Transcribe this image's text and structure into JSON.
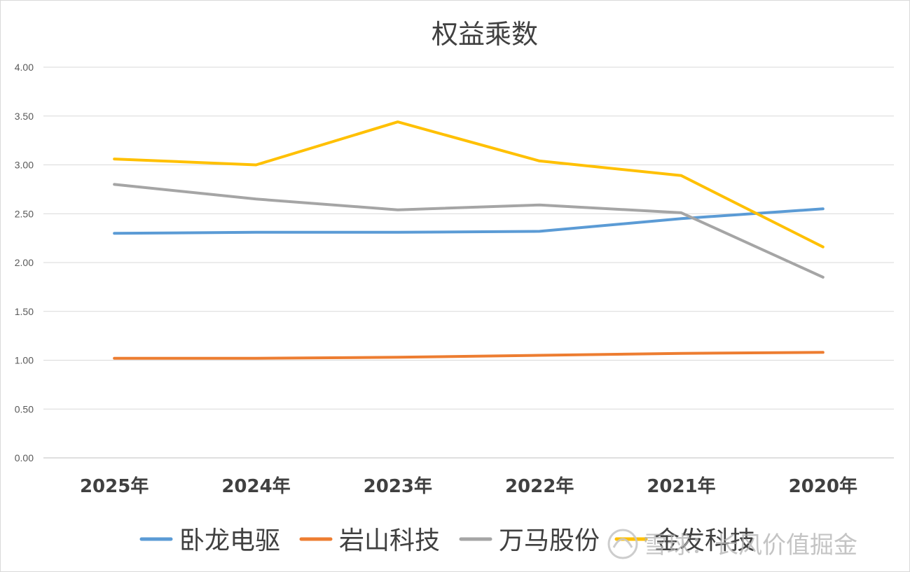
{
  "chart_data": {
    "type": "line",
    "title": "权益乘数",
    "categories": [
      "2025年",
      "2024年",
      "2023年",
      "2022年",
      "2021年",
      "2020年"
    ],
    "ylim": [
      0,
      4
    ],
    "yticks": [
      "0.00",
      "0.50",
      "1.00",
      "1.50",
      "2.00",
      "2.50",
      "3.00",
      "3.50",
      "4.00"
    ],
    "grid": true,
    "legend_position": "bottom",
    "series": [
      {
        "name": "卧龙电驱",
        "color": "#5b9bd5",
        "values": [
          2.3,
          2.31,
          2.31,
          2.32,
          2.45,
          2.55
        ]
      },
      {
        "name": "岩山科技",
        "color": "#ed7d31",
        "values": [
          1.02,
          1.02,
          1.03,
          1.05,
          1.07,
          1.08
        ]
      },
      {
        "name": "万马股份",
        "color": "#a5a5a5",
        "values": [
          2.8,
          2.65,
          2.54,
          2.59,
          2.51,
          1.85
        ]
      },
      {
        "name": "金发科技",
        "color": "#ffc000",
        "values": [
          3.06,
          3.0,
          3.44,
          3.04,
          2.89,
          2.16
        ]
      }
    ]
  },
  "watermark": {
    "text": "雪球：长风价值掘金"
  }
}
